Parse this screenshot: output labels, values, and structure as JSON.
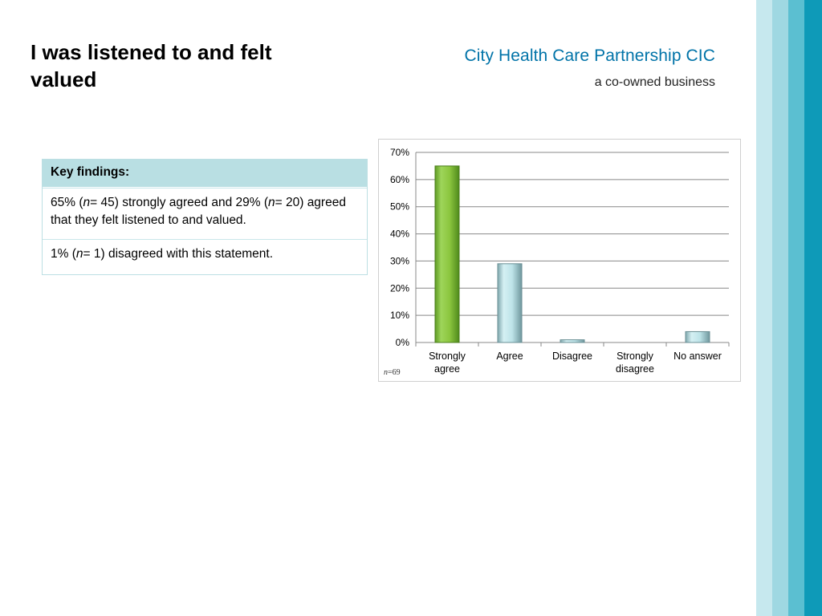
{
  "title": "I was listened to and felt valued",
  "brand": {
    "name": "City Health Care Partnership CIC",
    "tagline": "a co-owned business"
  },
  "findings": {
    "header": "Key findings:",
    "row1": {
      "p1": "65% (",
      "n1": "n",
      "p2": "= 45) strongly agreed and  29% (",
      "n2": "n",
      "p3": "= 20) agreed that they felt listened to and valued."
    },
    "row2": {
      "p1": "1% (",
      "n1": "n",
      "p2": "= 1) disagreed with this statement."
    }
  },
  "sample_note": {
    "label": "n",
    "value": "=69"
  },
  "colors": {
    "strongly_agree": "#8cc63f",
    "other": "#bde3e8",
    "grid": "#888888",
    "stripe_1": "#c6e8ee",
    "stripe_2": "#9fd8e2",
    "stripe_3": "#5bbfd1",
    "stripe_4": "#0e9ab8"
  },
  "chart_data": {
    "type": "bar",
    "categories": [
      "Strongly agree",
      "Agree",
      "Disagree",
      "Strongly disagree",
      "No answer"
    ],
    "category_lines": [
      [
        "Strongly",
        "agree"
      ],
      [
        "Agree"
      ],
      [
        "Disagree"
      ],
      [
        "Strongly",
        "disagree"
      ],
      [
        "No answer"
      ]
    ],
    "values": [
      65,
      29,
      1,
      0,
      4
    ],
    "ylim": [
      0,
      70
    ],
    "yticks": [
      0,
      10,
      20,
      30,
      40,
      50,
      60,
      70
    ],
    "ytick_labels": [
      "0%",
      "10%",
      "20%",
      "30%",
      "40%",
      "50%",
      "60%",
      "70%"
    ],
    "grid": true,
    "legend": "none"
  }
}
